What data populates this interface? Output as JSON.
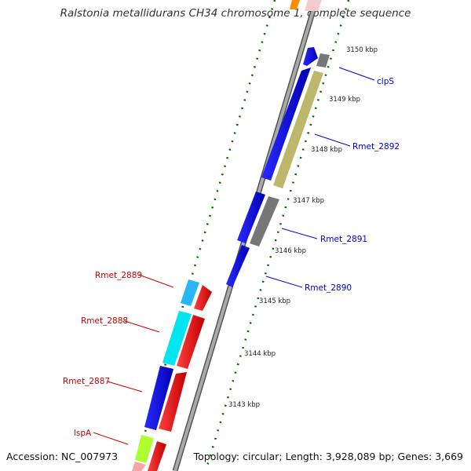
{
  "title": "Ralstonia metallidurans CH34 chromosome 1, complete sequence",
  "footer": {
    "accession": "Accession: NC_007973",
    "topology": "Topology: circular; Length: 3,928,089 bp; Genes: 3,669"
  },
  "ticks": [
    "3150 kbp",
    "3149 kbp",
    "3148 kbp",
    "3147 kbp",
    "3146 kbp",
    "3145 kbp",
    "3144 kbp",
    "3143 kbp"
  ],
  "genes": {
    "forward": [
      {
        "label": "clpS",
        "color": "#808080"
      },
      {
        "label": "Rmet_2892",
        "color": "#bdb76b"
      },
      {
        "label": "Rmet_2891",
        "color": "#808080"
      }
    ],
    "forward_unlabeled_color": "#0000ee",
    "reverse_labeled_color": "#0000cc",
    "reverse": [
      {
        "label": "Rmet_2890",
        "color": "#0000ee"
      }
    ],
    "inner": [
      {
        "label": "Rmet_2889",
        "color": "#00bfff"
      },
      {
        "label": "Rmet_2888",
        "color": "#00e5ee"
      },
      {
        "label": "Rmet_2887",
        "color": "#0000ee"
      },
      {
        "label": "lspA",
        "color": "#adff2f"
      }
    ],
    "inner_forward_color": "#ee0000"
  },
  "colors": {
    "backbone": "#888888",
    "tick_marks": "#006400",
    "label_blue": "#0000cc",
    "label_red": "#cc0000"
  }
}
